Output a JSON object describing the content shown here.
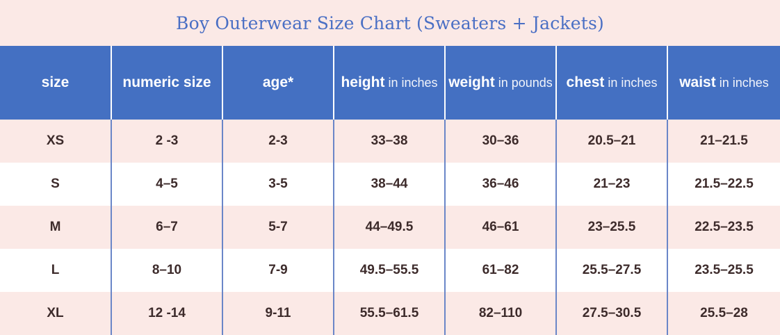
{
  "title": "Boy Outerwear Size Chart (Sweaters + Jackets)",
  "headers": [
    {
      "bold": "size",
      "light": ""
    },
    {
      "bold": "numeric size",
      "light": ""
    },
    {
      "bold": "age*",
      "light": ""
    },
    {
      "bold": "height",
      "light": "in inches"
    },
    {
      "bold": "weight",
      "light": "in pounds"
    },
    {
      "bold": "chest",
      "light": "in inches"
    },
    {
      "bold": "waist",
      "light": "in inches"
    }
  ],
  "rows": [
    [
      "XS",
      "2 -3",
      "2-3",
      "33–38",
      "30–36",
      "20.5–21",
      "21–21.5"
    ],
    [
      "S",
      "4–5",
      "3-5",
      "38–44",
      "36–46",
      "21–23",
      "21.5–22.5"
    ],
    [
      "M",
      "6–7",
      "5-7",
      "44–49.5",
      "46–61",
      "23–25.5",
      "22.5–23.5"
    ],
    [
      "L",
      "8–10",
      "7-9",
      "49.5–55.5",
      "61–82",
      "25.5–27.5",
      "23.5–25.5"
    ],
    [
      "XL",
      "12 -14",
      "9-11",
      "55.5–61.5",
      "82–110",
      "27.5–30.5",
      "25.5–28"
    ]
  ],
  "colors": {
    "title": "#4a6fc4",
    "header_bg": "#4470c2",
    "band_pink": "#fbe9e6",
    "cell_text": "#3d2b2b"
  }
}
